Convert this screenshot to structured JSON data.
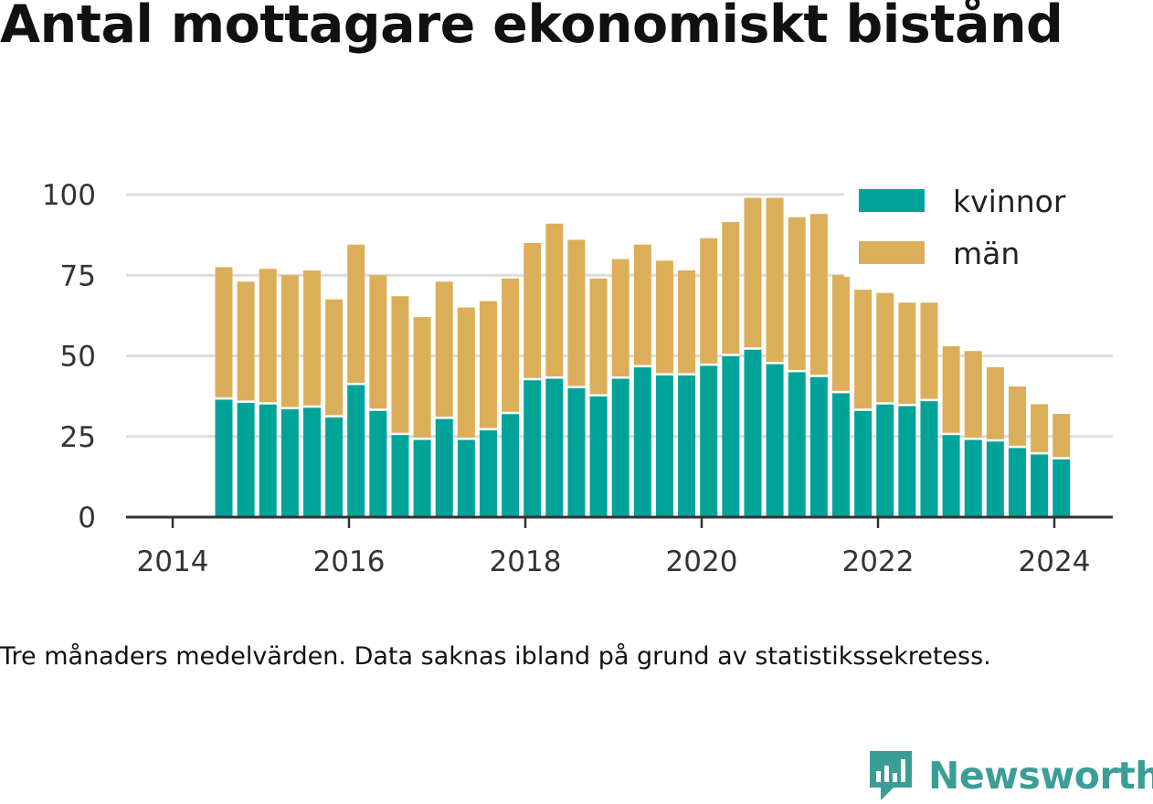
{
  "title": "Antal mottagare ekonomiskt bistånd",
  "caption": "Tre månaders medelvärden. Data saknas ibland på grund av statistikssekretess.",
  "brand": {
    "name": "Newsworthy",
    "color": "#3a9e96",
    "icon": "bar-chart-badge-icon"
  },
  "chart_data": {
    "type": "bar",
    "stacked": true,
    "x_axis": {
      "ticks": [
        2014,
        2016,
        2018,
        2020,
        2022,
        2024
      ],
      "range": [
        2013.45,
        2024.6
      ]
    },
    "y_axis": {
      "ticks": [
        0,
        25,
        50,
        75,
        100
      ],
      "range": [
        0,
        100
      ]
    },
    "grid": true,
    "legend_position": "top-right",
    "x": [
      2014.58,
      2014.83,
      2015.08,
      2015.33,
      2015.58,
      2015.83,
      2016.08,
      2016.33,
      2016.58,
      2016.83,
      2017.08,
      2017.33,
      2017.58,
      2017.83,
      2018.08,
      2018.33,
      2018.58,
      2018.83,
      2019.08,
      2019.33,
      2019.58,
      2019.83,
      2020.08,
      2020.33,
      2020.58,
      2020.83,
      2021.08,
      2021.33,
      2021.58,
      2021.83,
      2022.08,
      2022.33,
      2022.58,
      2022.83,
      2023.08,
      2023.33,
      2023.58,
      2023.83,
      2024.08
    ],
    "series": [
      {
        "name": "kvinnor",
        "color": "#00a398",
        "values": [
          36.5,
          35.5,
          35,
          33.5,
          34,
          31,
          41,
          33,
          25.5,
          24,
          30.5,
          24,
          27,
          32,
          42.5,
          43,
          40,
          37.5,
          43,
          46.5,
          44,
          44,
          47,
          50,
          52,
          47.5,
          45,
          43.5,
          38.5,
          33,
          35,
          34.5,
          36,
          25.5,
          24,
          23.5,
          21.5,
          19.5,
          18
        ]
      },
      {
        "name": "män",
        "color": "#dbae5a",
        "values": [
          41,
          37.5,
          42,
          41.5,
          42.5,
          36.5,
          43.5,
          42,
          43,
          38,
          42.5,
          41,
          40,
          42,
          42.5,
          48,
          46,
          36.5,
          37,
          38,
          35.5,
          32.5,
          39.5,
          41.5,
          47,
          51.5,
          48,
          50.5,
          36.5,
          37.5,
          34.5,
          32,
          30.5,
          27.5,
          27.5,
          23,
          19,
          15.5,
          14
        ]
      }
    ]
  }
}
